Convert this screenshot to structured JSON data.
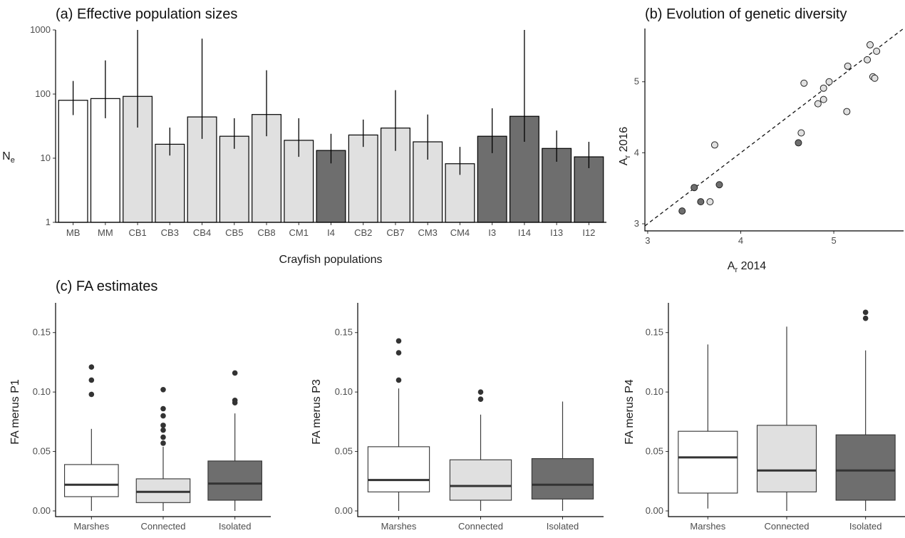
{
  "colors": {
    "marshes": "#ffffff",
    "connected": "#e0e0e0",
    "isolated": "#6e6e6e",
    "outline": "#000000",
    "median": "#333333",
    "whisker": "#3d3d3d"
  },
  "chart_data": [
    {
      "type": "bar",
      "title": "(a) Effective population sizes",
      "xlabel": "Crayfish populations",
      "ylabel": "N",
      "ylabel_sub": "e",
      "yscale": "log",
      "ylim": [
        1,
        1000
      ],
      "yticks": [
        "1",
        "10",
        "100",
        "1000"
      ],
      "categories": [
        "MB",
        "MM",
        "CB1",
        "CB3",
        "CB4",
        "CB5",
        "CB8",
        "CM1",
        "I4",
        "CB2",
        "CB7",
        "CM3",
        "CM4",
        "I3",
        "I14",
        "I13",
        "I12"
      ],
      "groups": [
        "marshes",
        "marshes",
        "connected",
        "connected",
        "connected",
        "connected",
        "connected",
        "connected",
        "isolated",
        "connected",
        "connected",
        "connected",
        "connected",
        "isolated",
        "isolated",
        "isolated",
        "isolated"
      ],
      "values": [
        80,
        85,
        92,
        16.5,
        44,
        22,
        48,
        19,
        13.2,
        23,
        29.5,
        18,
        8.2,
        22,
        45,
        14.2,
        10.5
      ],
      "ci_low": [
        47,
        42,
        30,
        11,
        20,
        14,
        22,
        10.5,
        8.3,
        15,
        13,
        9.5,
        5.5,
        12,
        18,
        8.8,
        7
      ],
      "ci_high": [
        160,
        335,
        1000,
        30,
        730,
        42,
        235,
        42,
        24,
        40,
        115,
        48,
        15,
        60,
        1000,
        27,
        18
      ],
      "grid": false
    },
    {
      "type": "scatter",
      "title": "(b) Evolution of genetic diversity",
      "xlabel": "A",
      "xlabel_sub": "r",
      "xlabel_suffix": " 2014",
      "ylabel": "A",
      "ylabel_sub": "r",
      "ylabel_suffix": " 2016",
      "xlim": [
        2.97,
        5.75
      ],
      "ylim": [
        2.9,
        5.75
      ],
      "xticks": [
        "3",
        "4",
        "5"
      ],
      "yticks": [
        "3",
        "4",
        "5"
      ],
      "reference_line": "y = x (dashed)",
      "points": [
        {
          "x": 3.37,
          "y": 3.18,
          "group": "isolated"
        },
        {
          "x": 3.5,
          "y": 3.51,
          "group": "isolated"
        },
        {
          "x": 3.57,
          "y": 3.31,
          "group": "isolated"
        },
        {
          "x": 3.77,
          "y": 3.55,
          "group": "isolated"
        },
        {
          "x": 4.62,
          "y": 4.14,
          "group": "isolated"
        },
        {
          "x": 3.67,
          "y": 3.31,
          "group": "connected"
        },
        {
          "x": 3.72,
          "y": 4.11,
          "group": "connected"
        },
        {
          "x": 4.65,
          "y": 4.28,
          "group": "connected"
        },
        {
          "x": 4.68,
          "y": 4.98,
          "group": "connected"
        },
        {
          "x": 4.83,
          "y": 4.69,
          "group": "connected"
        },
        {
          "x": 4.89,
          "y": 4.75,
          "group": "connected"
        },
        {
          "x": 4.89,
          "y": 4.91,
          "group": "connected"
        },
        {
          "x": 4.95,
          "y": 5.0,
          "group": "connected"
        },
        {
          "x": 5.14,
          "y": 4.58,
          "group": "connected"
        },
        {
          "x": 5.15,
          "y": 5.22,
          "group": "connected"
        },
        {
          "x": 5.36,
          "y": 5.31,
          "group": "connected"
        },
        {
          "x": 5.39,
          "y": 5.52,
          "group": "connected"
        },
        {
          "x": 5.42,
          "y": 5.07,
          "group": "connected"
        },
        {
          "x": 5.44,
          "y": 5.05,
          "group": "connected"
        },
        {
          "x": 5.46,
          "y": 5.43,
          "group": "connected"
        }
      ],
      "grid": false
    },
    {
      "type": "box",
      "title": "(c) FA estimates",
      "panels": [
        {
          "ylabel": "FA merus P1",
          "ylim": [
            0,
            0.175
          ],
          "yticks": [
            "0.00",
            "0.05",
            "0.10",
            "0.15"
          ],
          "categories": [
            "Marshes",
            "Connected",
            "Isolated"
          ],
          "groups": [
            "marshes",
            "connected",
            "isolated"
          ],
          "boxes": [
            {
              "whisker_low": 0.0,
              "q1": 0.012,
              "median": 0.022,
              "q3": 0.039,
              "whisker_high": 0.069,
              "outliers": [
                0.098,
                0.11,
                0.121
              ]
            },
            {
              "whisker_low": 0.0,
              "q1": 0.007,
              "median": 0.016,
              "q3": 0.027,
              "whisker_high": 0.054,
              "outliers": [
                0.057,
                0.062,
                0.068,
                0.072,
                0.08,
                0.086,
                0.102
              ]
            },
            {
              "whisker_low": 0.0,
              "q1": 0.009,
              "median": 0.023,
              "q3": 0.042,
              "whisker_high": 0.082,
              "outliers": [
                0.091,
                0.093,
                0.116
              ]
            }
          ]
        },
        {
          "ylabel": "FA merus P3",
          "ylim": [
            0,
            0.175
          ],
          "yticks": [
            "0.00",
            "0.05",
            "0.10",
            "0.15"
          ],
          "categories": [
            "Marshes",
            "Connected",
            "Isolated"
          ],
          "groups": [
            "marshes",
            "connected",
            "isolated"
          ],
          "boxes": [
            {
              "whisker_low": 0.0,
              "q1": 0.016,
              "median": 0.026,
              "q3": 0.054,
              "whisker_high": 0.103,
              "outliers": [
                0.11,
                0.133,
                0.143
              ]
            },
            {
              "whisker_low": 0.0,
              "q1": 0.009,
              "median": 0.021,
              "q3": 0.043,
              "whisker_high": 0.081,
              "outliers": [
                0.094,
                0.1
              ]
            },
            {
              "whisker_low": 0.0,
              "q1": 0.01,
              "median": 0.022,
              "q3": 0.044,
              "whisker_high": 0.092,
              "outliers": []
            }
          ]
        },
        {
          "ylabel": "FA merus P4",
          "ylim": [
            0,
            0.175
          ],
          "yticks": [
            "0.00",
            "0.05",
            "0.10",
            "0.15"
          ],
          "categories": [
            "Marshes",
            "Connected",
            "Isolated"
          ],
          "groups": [
            "marshes",
            "connected",
            "isolated"
          ],
          "boxes": [
            {
              "whisker_low": 0.002,
              "q1": 0.015,
              "median": 0.045,
              "q3": 0.067,
              "whisker_high": 0.14,
              "outliers": []
            },
            {
              "whisker_low": 0.0,
              "q1": 0.016,
              "median": 0.034,
              "q3": 0.072,
              "whisker_high": 0.155,
              "outliers": []
            },
            {
              "whisker_low": 0.0,
              "q1": 0.009,
              "median": 0.034,
              "q3": 0.064,
              "whisker_high": 0.135,
              "outliers": [
                0.162,
                0.167
              ]
            }
          ]
        }
      ]
    }
  ]
}
